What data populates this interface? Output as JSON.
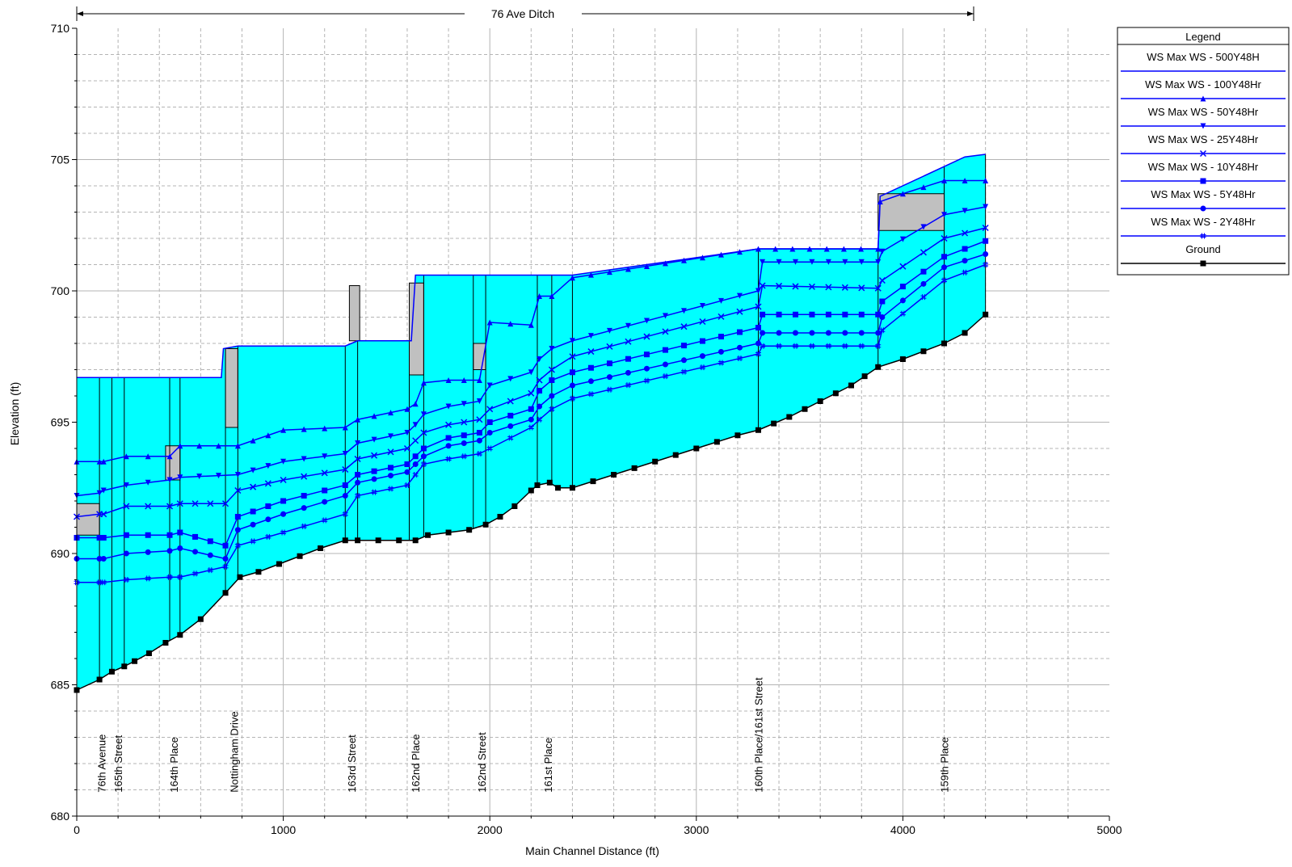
{
  "chart_data": {
    "type": "line",
    "title": "76 Ave Ditch",
    "xlabel": "Main Channel Distance (ft)",
    "ylabel": "Elevation (ft)",
    "xlim": [
      0,
      5000
    ],
    "ylim": [
      680,
      710
    ],
    "x_ticks": [
      0,
      1000,
      2000,
      3000,
      4000,
      5000
    ],
    "y_ticks": [
      680,
      685,
      690,
      695,
      700,
      705,
      710
    ],
    "grid": true,
    "legend": {
      "title": "Legend",
      "placement": "right",
      "entries": [
        {
          "label": "WS  Max WS - 500Y48H",
          "color": "#0000ff",
          "marker": "none"
        },
        {
          "label": "WS  Max WS - 100Y48Hr",
          "color": "#0000ff",
          "marker": "triangle-up"
        },
        {
          "label": "WS  Max WS - 50Y48Hr",
          "color": "#0000ff",
          "marker": "triangle-down"
        },
        {
          "label": "WS  Max WS - 25Y48Hr",
          "color": "#0000ff",
          "marker": "x"
        },
        {
          "label": "WS  Max WS - 10Y48Hr",
          "color": "#0000ff",
          "marker": "square"
        },
        {
          "label": "WS  Max WS - 5Y48Hr",
          "color": "#0000ff",
          "marker": "circle"
        },
        {
          "label": "WS  Max WS - 2Y48Hr",
          "color": "#0000ff",
          "marker": "hash"
        },
        {
          "label": "Ground",
          "color": "#000000",
          "marker": "square"
        }
      ]
    },
    "colors": {
      "fill": "#00ffff",
      "ws_line": "#0000ff",
      "ground": "#000000",
      "structure": "#c0c0c0",
      "grid": "#b4b4b4"
    },
    "crossing_labels": [
      {
        "x": 120,
        "label": "76th Avenue"
      },
      {
        "x": 200,
        "label": "165th Street"
      },
      {
        "x": 470,
        "label": "164th Place"
      },
      {
        "x": 760,
        "label": "Nottingham Drive"
      },
      {
        "x": 1330,
        "label": "163rd Street"
      },
      {
        "x": 1640,
        "label": "162nd Place"
      },
      {
        "x": 1960,
        "label": "162nd Street"
      },
      {
        "x": 2280,
        "label": "161st Place"
      },
      {
        "x": 3300,
        "label": "160th Place/161st Street"
      },
      {
        "x": 4200,
        "label": "159th Place"
      }
    ],
    "structures": [
      {
        "x": [
          0,
          110
        ],
        "bottom": 690.7,
        "top": 691.9
      },
      {
        "x": [
          430,
          500
        ],
        "bottom": 692.8,
        "top": 694.1
      },
      {
        "x": [
          720,
          780
        ],
        "bottom": 694.8,
        "top": 697.8
      },
      {
        "x": [
          1320,
          1370
        ],
        "bottom": 698.1,
        "top": 700.2
      },
      {
        "x": [
          1610,
          1680
        ],
        "bottom": 696.8,
        "top": 700.3
      },
      {
        "x": [
          1920,
          1980
        ],
        "bottom": 697.0,
        "top": 698.0
      },
      {
        "x": [
          3880,
          4200
        ],
        "bottom": 702.3,
        "top": 703.7
      }
    ],
    "series": [
      {
        "name": "Ground",
        "x": [
          0,
          110,
          170,
          230,
          280,
          350,
          430,
          500,
          600,
          720,
          790,
          880,
          980,
          1080,
          1180,
          1300,
          1360,
          1460,
          1560,
          1640,
          1700,
          1800,
          1900,
          1980,
          2050,
          2120,
          2200,
          2230,
          2290,
          2330,
          2400,
          2600,
          2800,
          3000,
          3200,
          3300,
          3450,
          3600,
          3750,
          3880,
          4000,
          4200,
          4300,
          4400
        ],
        "y": [
          684.8,
          685.2,
          685.5,
          685.7,
          685.9,
          686.2,
          686.6,
          686.9,
          687.5,
          688.5,
          689.1,
          689.3,
          689.6,
          689.9,
          690.2,
          690.5,
          690.5,
          690.5,
          690.5,
          690.5,
          690.7,
          690.8,
          690.9,
          691.1,
          691.4,
          691.8,
          692.4,
          692.6,
          692.7,
          692.5,
          692.5,
          693.0,
          693.5,
          694.0,
          694.5,
          694.7,
          695.2,
          695.8,
          696.4,
          697.1,
          697.4,
          698.0,
          698.4,
          699.1
        ]
      },
      {
        "name": "WS  Max WS - 500Y48H",
        "x": [
          0,
          700,
          710,
          780,
          1300,
          1360,
          1620,
          1640,
          2200,
          2400,
          3300,
          3880,
          3890,
          4300,
          4400
        ],
        "y": [
          696.7,
          696.7,
          697.8,
          697.9,
          697.9,
          698.1,
          698.1,
          700.6,
          700.6,
          700.6,
          701.6,
          701.6,
          703.6,
          705.1,
          705.2
        ]
      },
      {
        "name": "WS  Max WS - 100Y48Hr",
        "x": [
          0,
          110,
          130,
          240,
          450,
          500,
          780,
          1000,
          1300,
          1360,
          1600,
          1640,
          1680,
          1800,
          1950,
          2000,
          2200,
          2240,
          2300,
          2400,
          3300,
          3880,
          3890,
          4000,
          4200,
          4400
        ],
        "y": [
          693.5,
          693.5,
          693.5,
          693.7,
          693.7,
          694.1,
          694.1,
          694.7,
          694.8,
          695.1,
          695.5,
          695.7,
          696.5,
          696.6,
          696.6,
          698.8,
          698.7,
          699.8,
          699.8,
          700.5,
          701.6,
          701.6,
          703.4,
          703.7,
          704.2,
          704.2
        ]
      },
      {
        "name": "WS  Max WS - 50Y48Hr",
        "x": [
          0,
          110,
          130,
          240,
          450,
          500,
          780,
          1000,
          1300,
          1360,
          1600,
          1640,
          1680,
          1800,
          1950,
          2000,
          2200,
          2240,
          2300,
          2400,
          3300,
          3320,
          3880,
          3900,
          4200,
          4400
        ],
        "y": [
          692.2,
          692.3,
          692.4,
          692.6,
          692.8,
          692.9,
          693.0,
          693.5,
          693.8,
          694.2,
          694.6,
          694.9,
          695.3,
          695.6,
          695.8,
          696.4,
          696.9,
          697.4,
          697.8,
          698.1,
          700.0,
          701.1,
          701.1,
          701.5,
          702.9,
          703.2
        ]
      },
      {
        "name": "WS  Max WS - 25Y48Hr",
        "x": [
          0,
          110,
          130,
          240,
          450,
          500,
          720,
          780,
          1000,
          1300,
          1360,
          1600,
          1640,
          1680,
          1800,
          1950,
          2000,
          2200,
          2240,
          2300,
          2400,
          3300,
          3320,
          3880,
          3900,
          4200,
          4400
        ],
        "y": [
          691.4,
          691.5,
          691.5,
          691.8,
          691.8,
          691.9,
          691.9,
          692.4,
          692.8,
          693.2,
          693.6,
          694.0,
          694.3,
          694.6,
          694.9,
          695.1,
          695.5,
          696.1,
          696.6,
          697.0,
          697.5,
          699.4,
          700.2,
          700.1,
          700.4,
          702.0,
          702.4
        ]
      },
      {
        "name": "WS  Max WS - 10Y48Hr",
        "x": [
          0,
          110,
          130,
          240,
          450,
          500,
          720,
          780,
          1000,
          1300,
          1360,
          1600,
          1640,
          1680,
          1800,
          1950,
          2000,
          2200,
          2240,
          2300,
          2400,
          3300,
          3320,
          3880,
          3900,
          4200,
          4400
        ],
        "y": [
          690.6,
          690.6,
          690.6,
          690.7,
          690.7,
          690.8,
          690.3,
          691.4,
          692.0,
          692.6,
          693.0,
          693.4,
          693.7,
          694.0,
          694.4,
          694.6,
          695.0,
          695.5,
          696.2,
          696.6,
          696.9,
          698.6,
          699.1,
          699.1,
          699.6,
          701.3,
          701.9
        ]
      },
      {
        "name": "WS  Max WS - 5Y48Hr",
        "x": [
          0,
          110,
          130,
          240,
          450,
          500,
          720,
          780,
          1000,
          1300,
          1360,
          1600,
          1640,
          1680,
          1800,
          1950,
          2000,
          2200,
          2240,
          2300,
          2400,
          3300,
          3320,
          3880,
          3900,
          4200,
          4400
        ],
        "y": [
          689.8,
          689.8,
          689.8,
          690.0,
          690.1,
          690.2,
          689.8,
          690.9,
          691.5,
          692.2,
          692.7,
          693.1,
          693.4,
          693.7,
          694.1,
          694.3,
          694.6,
          695.1,
          695.6,
          696.0,
          696.4,
          698.0,
          698.4,
          698.4,
          699.0,
          700.9,
          701.4
        ]
      },
      {
        "name": "WS  Max WS - 2Y48Hr",
        "x": [
          0,
          110,
          130,
          240,
          450,
          500,
          720,
          780,
          1000,
          1300,
          1360,
          1600,
          1640,
          1680,
          1800,
          1950,
          2000,
          2200,
          2240,
          2300,
          2400,
          3300,
          3320,
          3880,
          3900,
          4200,
          4400
        ],
        "y": [
          688.9,
          688.9,
          688.9,
          689.0,
          689.1,
          689.1,
          689.5,
          690.3,
          690.8,
          691.5,
          692.2,
          692.6,
          693.0,
          693.4,
          693.6,
          693.8,
          694.0,
          694.8,
          695.1,
          695.5,
          695.9,
          697.6,
          697.9,
          697.9,
          698.5,
          700.4,
          701.0
        ]
      }
    ]
  }
}
